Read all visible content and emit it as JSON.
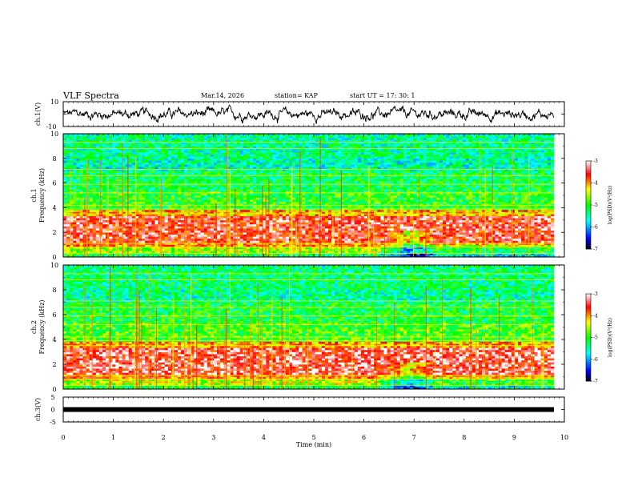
{
  "header": {
    "title": "VLF Spectra",
    "date": "Mar.14, 2026",
    "station": "station= KAP",
    "start": "start  UT =   17: 30: 1"
  },
  "colors": {
    "colormap": [
      "#000000",
      "#0000ff",
      "#00ffff",
      "#00ff00",
      "#ffff00",
      "#ff0000",
      "#ffffff"
    ],
    "trace": "#000000",
    "bar": "#000000"
  },
  "chart_data": [
    {
      "type": "line",
      "name": "ch1-timeseries",
      "ylabel": "ch.1(V)",
      "xlim": [
        0,
        10
      ],
      "ylim": [
        -10,
        10
      ],
      "yticks": [
        "10",
        "-10"
      ],
      "description_values": "noise waveform mostly between -5 and 5 V"
    },
    {
      "type": "heatmap",
      "name": "ch1-spectrogram",
      "ylabel1": "ch.1",
      "ylabel2": "Frequency  (kHz)",
      "xlim": [
        0,
        9.85
      ],
      "ylim": [
        0,
        10
      ],
      "yticks": [
        "0",
        "2",
        "4",
        "6",
        "8",
        "10"
      ],
      "colorbar": {
        "label": "log(PSD)(V²/Hz)",
        "range": [
          -7,
          -3
        ],
        "ticks": [
          "-3",
          "-4",
          "-5",
          "-6",
          "-7"
        ]
      }
    },
    {
      "type": "heatmap",
      "name": "ch2-spectrogram",
      "ylabel1": "ch.2",
      "ylabel2": "Frequency  (kHz)",
      "xlim": [
        0,
        9.85
      ],
      "ylim": [
        0,
        10
      ],
      "yticks": [
        "0",
        "2",
        "4",
        "6",
        "8",
        "10"
      ],
      "colorbar": {
        "label": "log(PSD)(V²/Hz)",
        "range": [
          -7,
          -3
        ],
        "ticks": [
          "-3",
          "-4",
          "-5",
          "-6",
          "-7"
        ]
      }
    },
    {
      "type": "line",
      "name": "ch3-timeseries",
      "ylabel": "ch.3(V)",
      "xlim": [
        0,
        10
      ],
      "ylim": [
        -5,
        5
      ],
      "yticks": [
        "5",
        "0",
        "-5"
      ],
      "constant_value": 0
    }
  ],
  "xaxis": {
    "label": "Time  (min)",
    "ticks": [
      "0",
      "1",
      "2",
      "3",
      "4",
      "5",
      "6",
      "7",
      "8",
      "9",
      "10"
    ]
  }
}
